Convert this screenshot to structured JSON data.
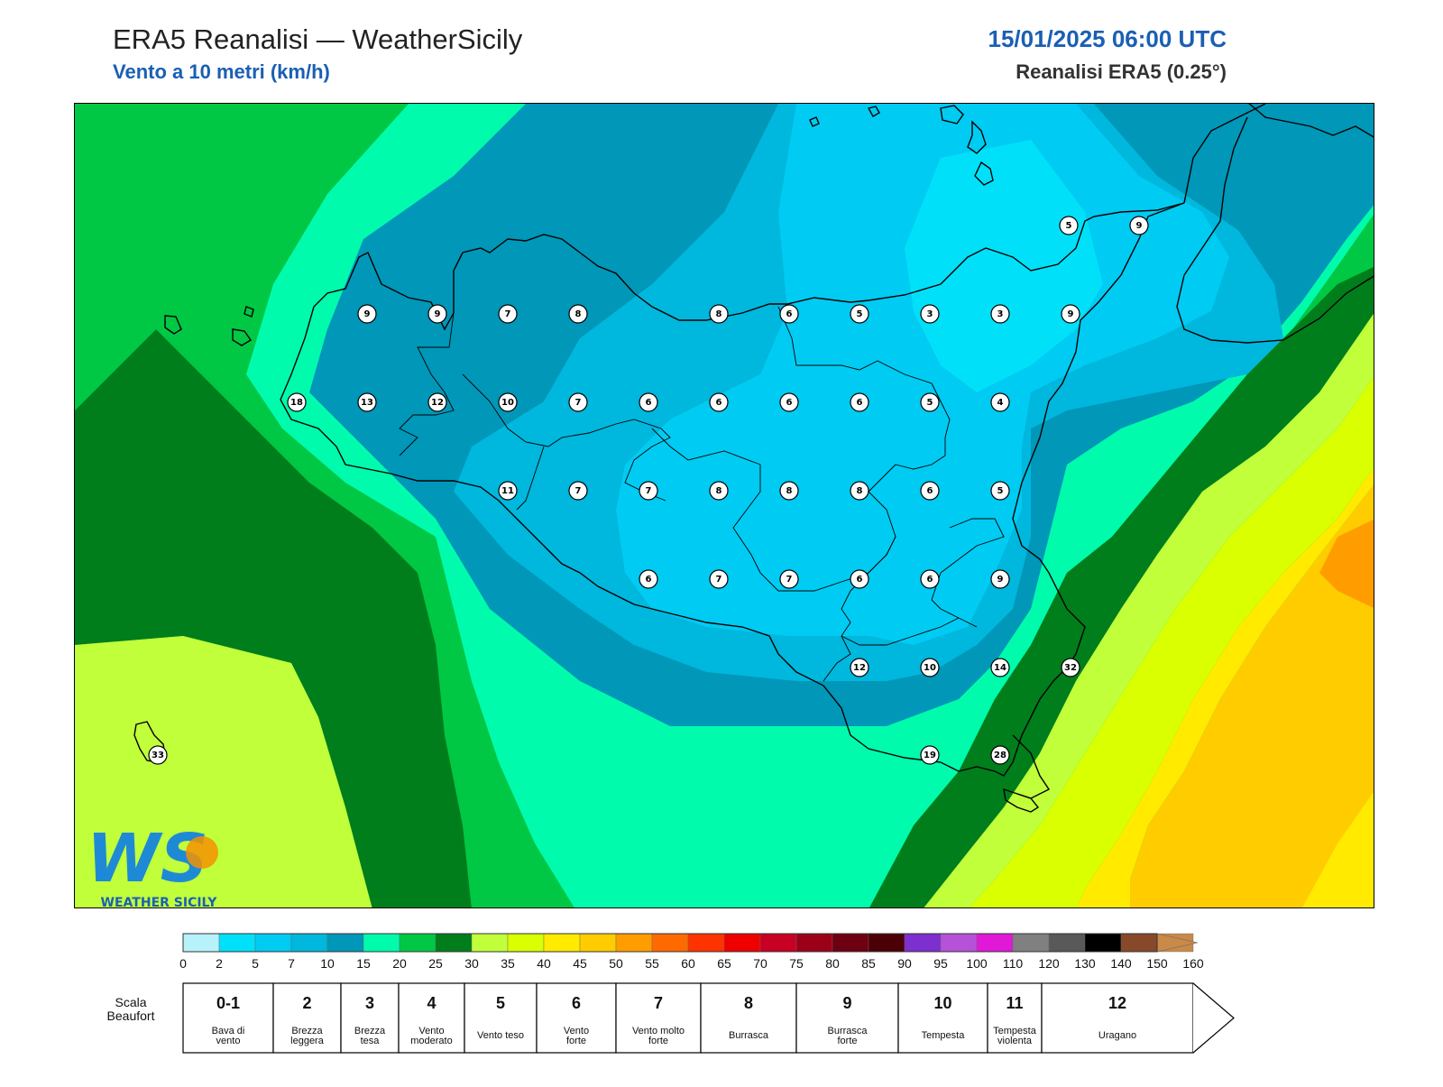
{
  "header": {
    "title": "ERA5 Reanalisi — WeatherSicily",
    "subtitle": "Vento a 10 metri (km/h)",
    "datetime": "15/01/2025 06:00 UTC",
    "source": "Reanalisi ERA5 (0.25°)"
  },
  "logo": {
    "letters": "WS",
    "name": "WEATHER SICILY"
  },
  "stations": [
    {
      "value": "5"
    },
    {
      "value": "9"
    },
    {
      "value": "9"
    },
    {
      "value": "9"
    },
    {
      "value": "7"
    },
    {
      "value": "8"
    },
    {
      "value": "8"
    },
    {
      "value": "6"
    },
    {
      "value": "5"
    },
    {
      "value": "3"
    },
    {
      "value": "3"
    },
    {
      "value": "9"
    },
    {
      "value": "18"
    },
    {
      "value": "13"
    },
    {
      "value": "12"
    },
    {
      "value": "10"
    },
    {
      "value": "7"
    },
    {
      "value": "6"
    },
    {
      "value": "6"
    },
    {
      "value": "6"
    },
    {
      "value": "6"
    },
    {
      "value": "5"
    },
    {
      "value": "4"
    },
    {
      "value": "11"
    },
    {
      "value": "7"
    },
    {
      "value": "7"
    },
    {
      "value": "8"
    },
    {
      "value": "8"
    },
    {
      "value": "8"
    },
    {
      "value": "6"
    },
    {
      "value": "5"
    },
    {
      "value": "6"
    },
    {
      "value": "7"
    },
    {
      "value": "7"
    },
    {
      "value": "6"
    },
    {
      "value": "6"
    },
    {
      "value": "9"
    },
    {
      "value": "12"
    },
    {
      "value": "10"
    },
    {
      "value": "14"
    },
    {
      "value": "32"
    },
    {
      "value": "33"
    },
    {
      "value": "19"
    },
    {
      "value": "28"
    }
  ],
  "colorbar": {
    "colors": [
      "#b7f2fb",
      "#00e1f9",
      "#00cbf3",
      "#00b7dd",
      "#0097b8",
      "#00fbad",
      "#00c844",
      "#007e1b",
      "#c1ff3b",
      "#d9ff00",
      "#ffea00",
      "#ffcc00",
      "#ff9d00",
      "#ff6a00",
      "#ff3300",
      "#ee0000",
      "#c80023",
      "#9c0019",
      "#6e0011",
      "#4a0005",
      "#7d2fcf",
      "#b552d8",
      "#e019d6",
      "#808080",
      "#595959",
      "#000000",
      "#87492a",
      "#c98949"
    ],
    "ticks": [
      "0",
      "2",
      "5",
      "7",
      "10",
      "15",
      "20",
      "25",
      "30",
      "35",
      "40",
      "45",
      "50",
      "55",
      "60",
      "65",
      "70",
      "75",
      "80",
      "85",
      "90",
      "95",
      "100",
      "110",
      "120",
      "130",
      "140",
      "150",
      "160"
    ]
  },
  "beaufort": {
    "label_line1": "Scala",
    "label_line2": "Beaufort",
    "cells": [
      {
        "num": "0-1",
        "d1": "Bava di",
        "d2": "vento"
      },
      {
        "num": "2",
        "d1": "Brezza",
        "d2": "leggera"
      },
      {
        "num": "3",
        "d1": "Brezza",
        "d2": "tesa"
      },
      {
        "num": "4",
        "d1": "Vento",
        "d2": "moderato"
      },
      {
        "num": "5",
        "d1": "Vento teso",
        "d2": ""
      },
      {
        "num": "6",
        "d1": "Vento",
        "d2": "forte"
      },
      {
        "num": "7",
        "d1": "Vento molto",
        "d2": "forte"
      },
      {
        "num": "8",
        "d1": "Burrasca",
        "d2": ""
      },
      {
        "num": "9",
        "d1": "Burrasca",
        "d2": "forte"
      },
      {
        "num": "10",
        "d1": "Tempesta",
        "d2": ""
      },
      {
        "num": "11",
        "d1": "Tempesta",
        "d2": "violenta"
      },
      {
        "num": "12",
        "d1": "Uragano",
        "d2": ""
      }
    ]
  }
}
